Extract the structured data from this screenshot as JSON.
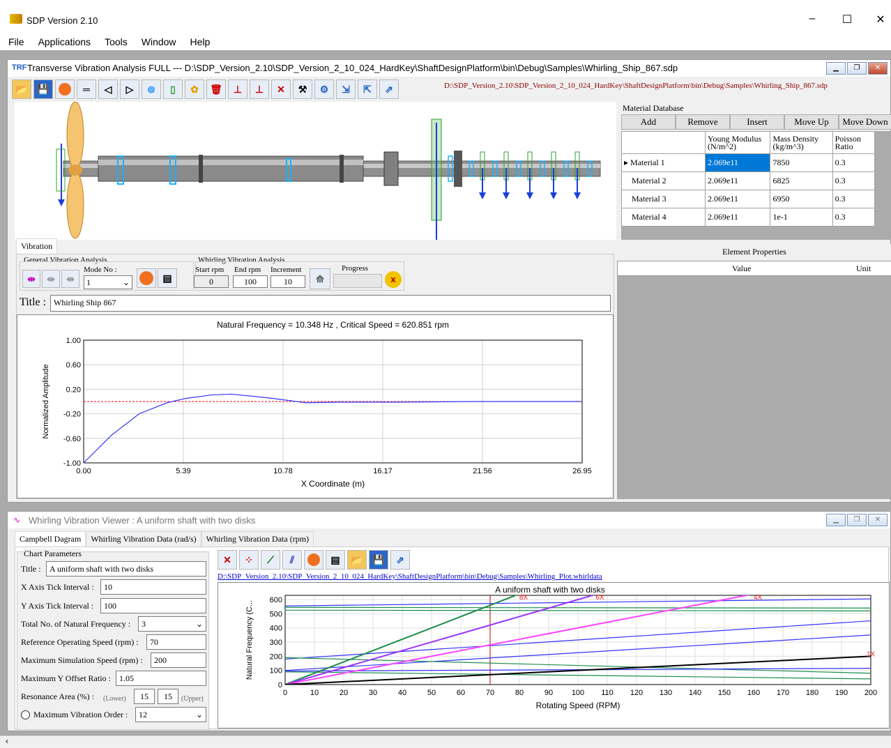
{
  "app": {
    "title": "SDP Version 2.10",
    "minimize": "–",
    "maximize": "☐",
    "close": "✕"
  },
  "menu": [
    "File",
    "Applications",
    "Tools",
    "Window",
    "Help"
  ],
  "tva_window": {
    "icon_text": "TRF",
    "title": "Transverse Vibration Analysis FULL --- D:\\SDP_Version_2.10\\SDP_Version_2_10_024_HardKey\\ShaftDesignPlatform\\bin\\Debug\\Samples\\Whirling_Ship_867.sdp",
    "path": "D:\\SDP_Version_2.10\\SDP_Version_2_10_024_HardKey\\ShaftDesignPlatform\\bin\\Debug\\Samples\\Whirling_Ship_867.sdp",
    "toolbar_icons": [
      "open-folder-icon",
      "save-icon",
      "run-icon",
      "bar-icon",
      "left-taper-icon",
      "right-taper-icon",
      "bearing-icon",
      "battery-icon",
      "propeller-icon",
      "delete-icon",
      "insert-left-icon",
      "insert-right-icon",
      "cross-tool-icon",
      "tool-icon",
      "gear-icon",
      "arrow-in-icon",
      "arrow-out-icon",
      "export-icon"
    ]
  },
  "material_db": {
    "label": "Material Database",
    "buttons": [
      "Add",
      "Remove",
      "Insert",
      "Move Up",
      "Move Down"
    ],
    "columns": [
      "Young Modulus (N/m^2)",
      "Mass Density (kg/m^3)",
      "Poisson Ratio"
    ],
    "rows": [
      {
        "name": "Material  1",
        "young": "2.069e11",
        "density": "7850",
        "poisson": "0.3"
      },
      {
        "name": "Material  2",
        "young": "2.069e11",
        "density": "6825",
        "poisson": "0.3"
      },
      {
        "name": "Material  3",
        "young": "2.069e11",
        "density": "6950",
        "poisson": "0.3"
      },
      {
        "name": "Material  4",
        "young": "2.069e11",
        "density": "1e-1",
        "poisson": "0.3"
      }
    ]
  },
  "element_props": {
    "label": "Element Properties",
    "columns": [
      "Value",
      "Unit"
    ]
  },
  "vibration": {
    "tab": "Vibration",
    "general_label": "General Vibration Analysis",
    "mode_label": "Mode No :",
    "mode_value": "1",
    "whirling_label": "Whirling Vibration Analysis",
    "start_label": "Start rpm",
    "start_value": "0",
    "end_label": "End rpm",
    "end_value": "100",
    "inc_label": "Increment",
    "inc_value": "10",
    "progress_label": "Progress",
    "title_label": "Title :",
    "title_value": "Whirling Ship 867"
  },
  "mode_chart": {
    "chart_data": {
      "type": "line",
      "title": "Natural Frequency = 10.348 Hz  , Critical Speed = 620.851 rpm",
      "xlabel": "X Coordinate (m)",
      "ylabel": "Normalized Amplitude",
      "xticks": [
        "0.00",
        "5.39",
        "10.78",
        "16.17",
        "21.56",
        "26.95"
      ],
      "yticks": [
        "1.00",
        "0.60",
        "0.20",
        "-0.20",
        "-0.60",
        "-1.00"
      ],
      "xlim": [
        0,
        26.95
      ],
      "ylim": [
        -1.0,
        1.0
      ],
      "series": [
        {
          "color": "#3333ff",
          "x": [
            0,
            1.5,
            3,
            4.5,
            5.5,
            7,
            8,
            10,
            12,
            14,
            17,
            21,
            24,
            26.95
          ],
          "y": [
            -1.0,
            -0.55,
            -0.2,
            -0.02,
            0.05,
            0.11,
            0.12,
            0.06,
            -0.02,
            -0.01,
            -0.01,
            0.0,
            0.0,
            0.0
          ]
        }
      ],
      "reference_line": {
        "y": 0.0,
        "color": "#ff0000"
      }
    }
  },
  "whirl_window": {
    "title": "Whirling Vibration Viewer : A uniform shaft with two disks",
    "tabs": [
      "Campbell Dagram",
      "Whirling Vibration Data (rad/s)",
      "Whirling Vibration Data (rpm)"
    ],
    "params_label": "Chart Parameters",
    "fields": [
      {
        "label": "Title :",
        "value": "A uniform shaft with two disks"
      },
      {
        "label": "X Axis Tick Interval :",
        "value": "10"
      },
      {
        "label": "Y Axis Tick Interval :",
        "value": "100"
      },
      {
        "label": "Total No. of Natural Frequency :",
        "value": "3"
      },
      {
        "label": "Reference Operating Speed (rpm) :",
        "value": "70"
      },
      {
        "label": "Maximum Simulation Speed (rpm) :",
        "value": "200"
      },
      {
        "label": "Maximum Y Offset Ratio :",
        "value": "1.05"
      }
    ],
    "resonance_label": "Resonance Area (%) :",
    "resonance_lower_label": "(Lower)",
    "resonance_lower": "15",
    "resonance_upper": "15",
    "resonance_upper_label": "(Upper)",
    "max_order_label": "Maximum Vibration Order :",
    "max_order_value": "12",
    "path": "D:\\SDP_Version_2.10\\SDP_Version_2_10_024_HardKey\\ShaftDesignPlatform\\bin\\Debug\\Samples\\Whirling_Plot.whirldata"
  },
  "campbell_chart": {
    "chart_data": {
      "type": "line",
      "title": "A uniform shaft with two disks",
      "xlabel": "Rotating Speed (RPM)",
      "ylabel": "Natural Frequency (C...",
      "xlim": [
        0,
        200
      ],
      "ylim": [
        0,
        630
      ],
      "xticks": [
        0,
        10,
        20,
        30,
        40,
        50,
        60,
        70,
        80,
        90,
        100,
        110,
        120,
        130,
        140,
        150,
        160,
        170,
        180,
        190,
        200
      ],
      "yticks": [
        0,
        100,
        200,
        300,
        400,
        500,
        600
      ],
      "reference_speed": 70,
      "order_lines": [
        {
          "label": "8X",
          "color": "#1a8c4a",
          "points": [
            [
              0,
              0
            ],
            [
              80,
              640
            ]
          ]
        },
        {
          "label": "6X",
          "color": "#9933ff",
          "points": [
            [
              0,
              0
            ],
            [
              106,
              636
            ]
          ]
        },
        {
          "label": "4X",
          "color": "#ff44ff",
          "points": [
            [
              0,
              0
            ],
            [
              160,
              640
            ]
          ]
        },
        {
          "label": "1X",
          "color": "#000000",
          "points": [
            [
              0,
              0
            ],
            [
              200,
              200
            ]
          ]
        }
      ],
      "frequency_lines": [
        {
          "color": "#1a8c4a",
          "points": [
            [
              0,
              545
            ],
            [
              200,
              540
            ]
          ]
        },
        {
          "color": "#3333ff",
          "points": [
            [
              0,
              555
            ],
            [
              200,
              605
            ]
          ]
        },
        {
          "color": "#1a8c4a",
          "points": [
            [
              0,
              525
            ],
            [
              200,
              520
            ]
          ]
        },
        {
          "color": "#3333ff",
          "points": [
            [
              0,
              180
            ],
            [
              200,
              450
            ]
          ]
        },
        {
          "color": "#3333ff",
          "points": [
            [
              0,
              100
            ],
            [
              200,
              350
            ]
          ]
        },
        {
          "color": "#1a8c4a",
          "points": [
            [
              0,
              190
            ],
            [
              200,
              80
            ]
          ]
        },
        {
          "color": "#3333ff",
          "points": [
            [
              0,
              95
            ],
            [
              200,
              115
            ]
          ]
        },
        {
          "color": "#1a8c4a",
          "points": [
            [
              0,
              90
            ],
            [
              200,
              40
            ]
          ]
        }
      ]
    }
  }
}
